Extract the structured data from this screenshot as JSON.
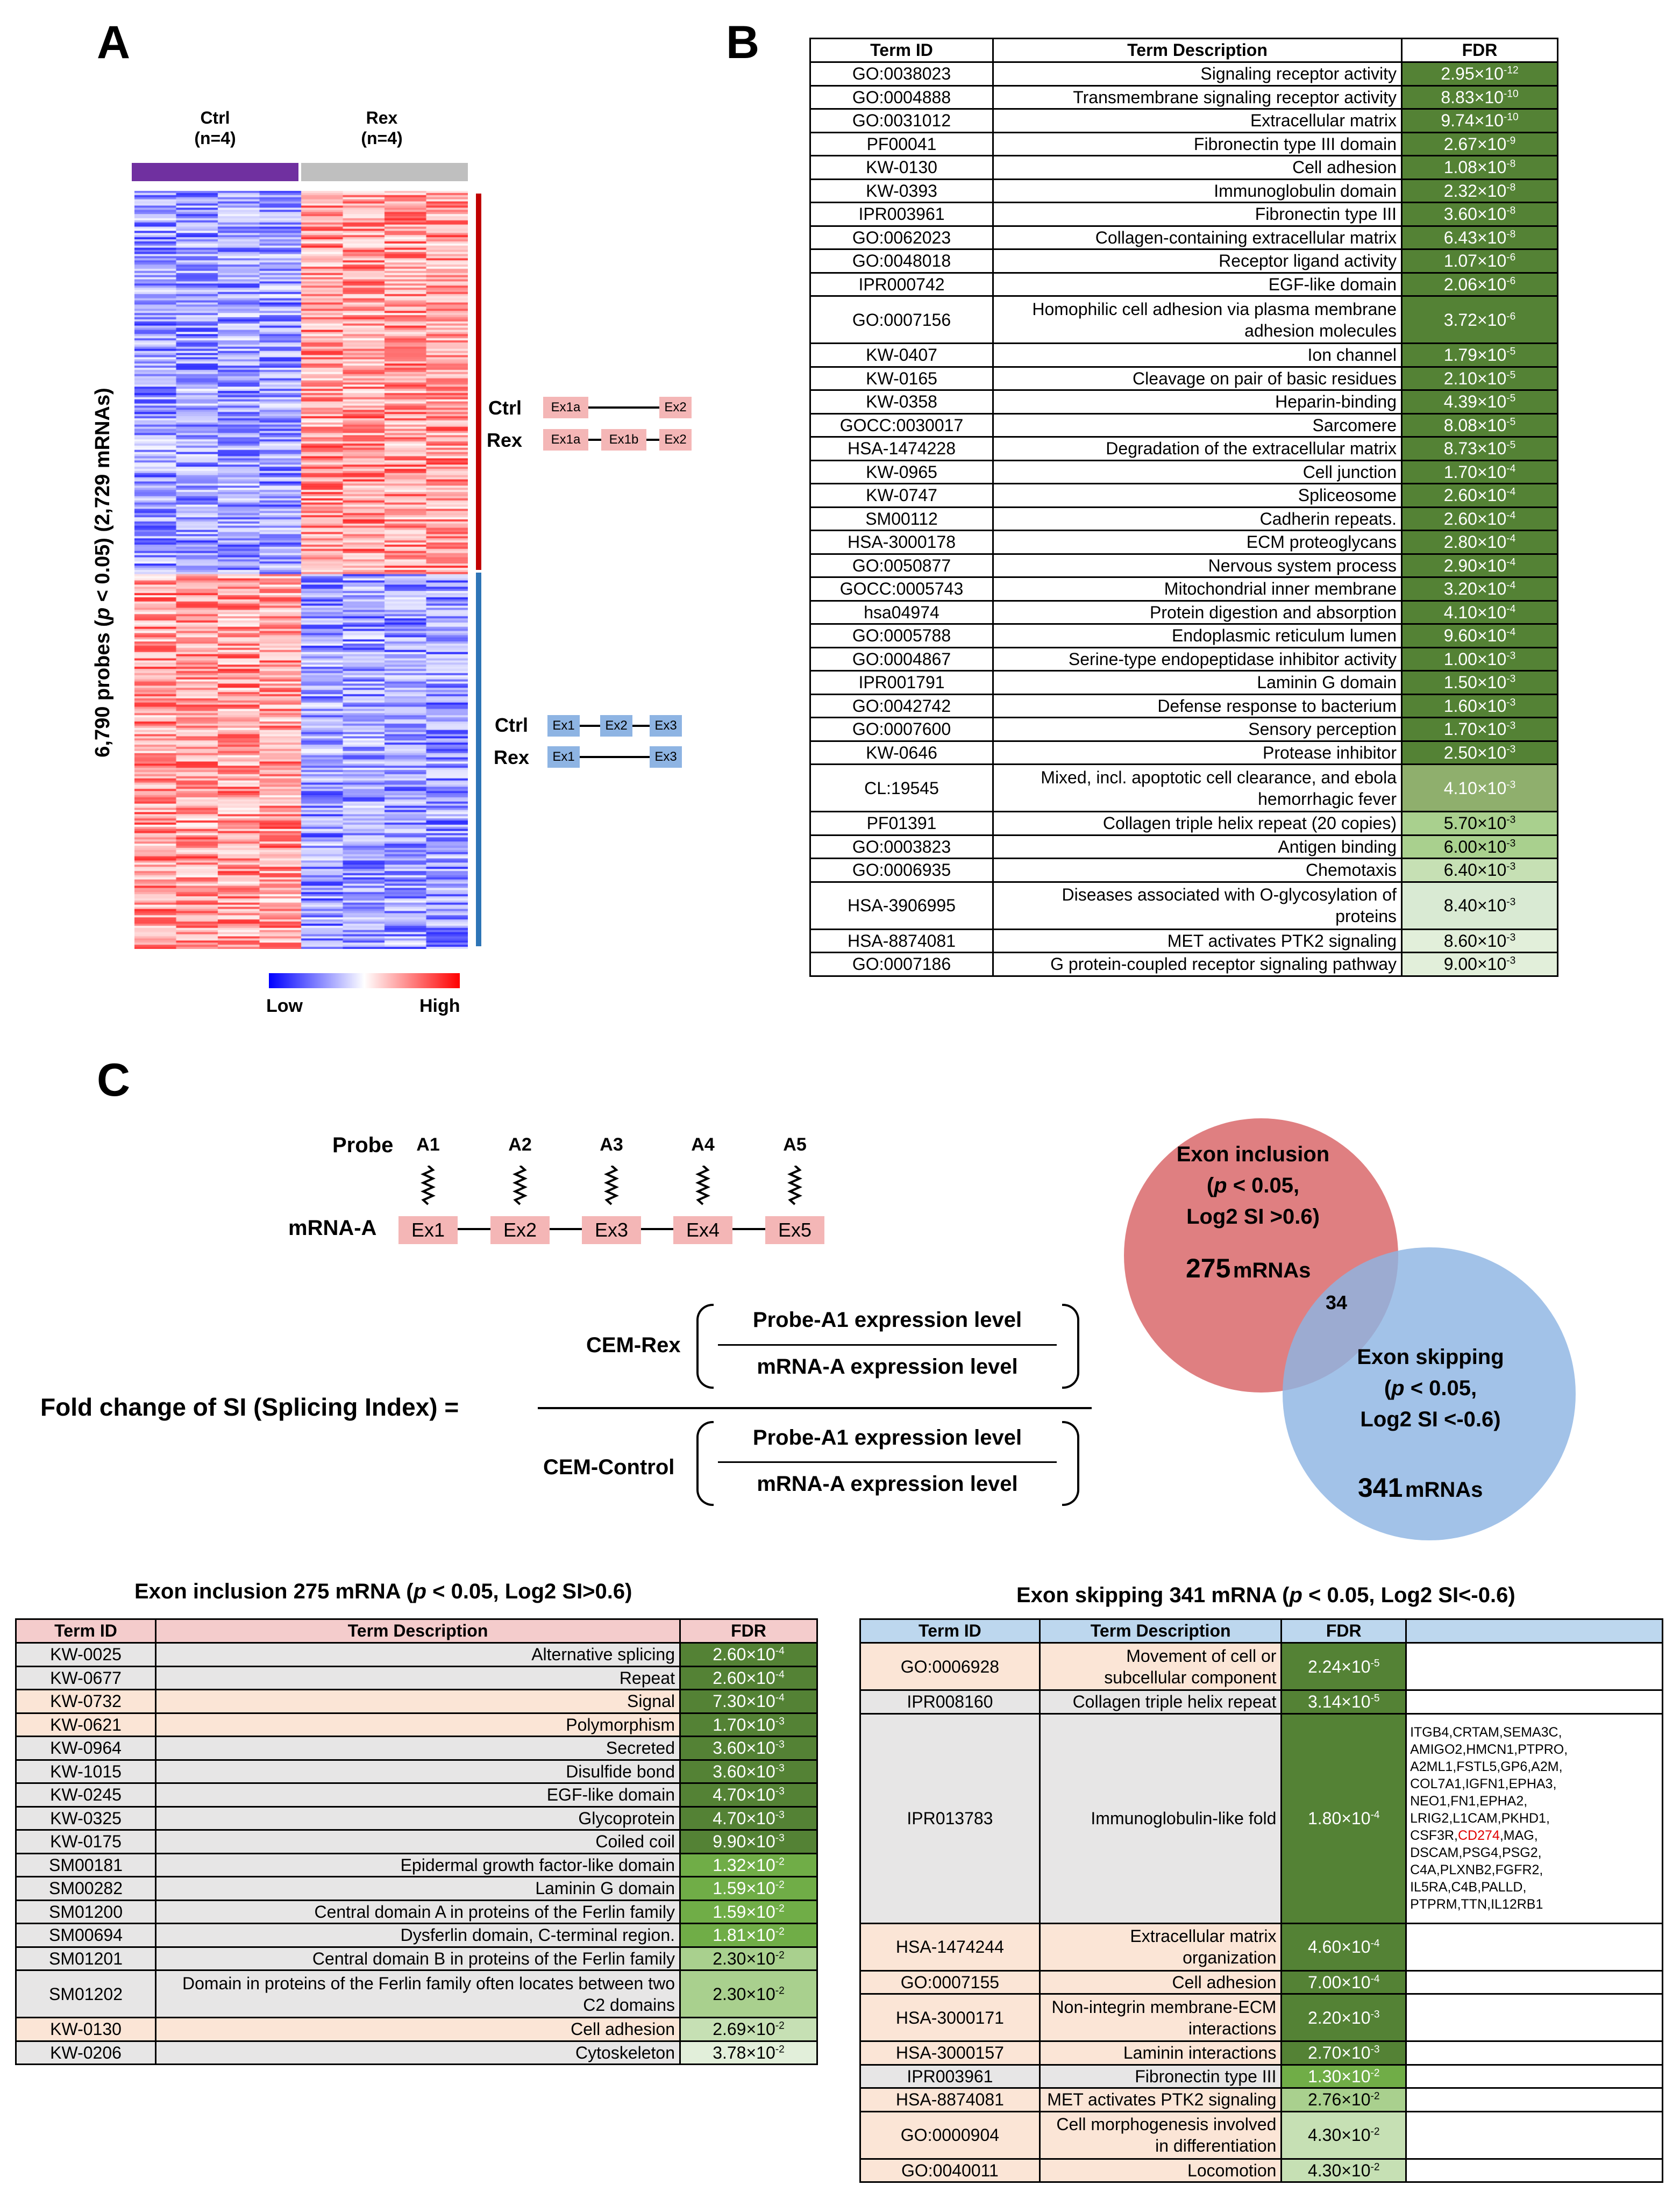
{
  "panel_a": {
    "letter": "A",
    "ctrl_label": "Ctrl",
    "ctrl_n": "(n=4)",
    "rex_label": "Rex",
    "rex_n": "(n=4)",
    "y_label_prefix": "6,790 probes (",
    "y_label_p": "p",
    "y_label_suffix": " < 0.05) (2,729 mRNAs)",
    "ctrl_color": "#7030a0",
    "rex_color": "#bfbfbf",
    "legend_low": "Low",
    "legend_high": "High",
    "inset_top": {
      "ctrl": "Ctrl",
      "rex": "Rex",
      "ex1a": "Ex1a",
      "ex2": "Ex2",
      "ex1b": "Ex1b"
    },
    "inset_bottom": {
      "ctrl": "Ctrl",
      "rex": "Rex",
      "ex1": "Ex1",
      "ex2": "Ex2",
      "ex3": "Ex3"
    }
  },
  "panel_b": {
    "letter": "B",
    "headers": [
      "Term ID",
      "Term Description",
      "FDR"
    ],
    "rows": [
      [
        "GO:0038023",
        "Signaling receptor activity",
        "2.95×10",
        "-12",
        "#548235",
        "#fff"
      ],
      [
        "GO:0004888",
        "Transmembrane signaling receptor activity",
        "8.83×10",
        "-10",
        "#548235",
        "#fff"
      ],
      [
        "GO:0031012",
        "Extracellular matrix",
        "9.74×10",
        "-10",
        "#548235",
        "#fff"
      ],
      [
        "PF00041",
        "Fibronectin type III domain",
        "2.67×10",
        "-9",
        "#548235",
        "#fff"
      ],
      [
        "KW-0130",
        "Cell adhesion",
        "1.08×10",
        "-8",
        "#548235",
        "#fff"
      ],
      [
        "KW-0393",
        "Immunoglobulin domain",
        "2.32×10",
        "-8",
        "#548235",
        "#fff"
      ],
      [
        "IPR003961",
        "Fibronectin type III",
        "3.60×10",
        "-8",
        "#548235",
        "#fff"
      ],
      [
        "GO:0062023",
        "Collagen-containing extracellular matrix",
        "6.43×10",
        "-8",
        "#548235",
        "#fff"
      ],
      [
        "GO:0048018",
        "Receptor ligand activity",
        "1.07×10",
        "-6",
        "#548235",
        "#fff"
      ],
      [
        "IPR000742",
        "EGF-like domain",
        "2.06×10",
        "-6",
        "#548235",
        "#fff"
      ],
      [
        "GO:0007156",
        "Homophilic cell adhesion via plasma membrane adhesion molecules",
        "3.72×10",
        "-6",
        "#548235",
        "#fff"
      ],
      [
        "KW-0407",
        "Ion channel",
        "1.79×10",
        "-5",
        "#548235",
        "#fff"
      ],
      [
        "KW-0165",
        "Cleavage on pair of basic residues",
        "2.10×10",
        "-5",
        "#548235",
        "#fff"
      ],
      [
        "KW-0358",
        "Heparin-binding",
        "4.39×10",
        "-5",
        "#548235",
        "#fff"
      ],
      [
        "GOCC:0030017",
        "Sarcomere",
        "8.08×10",
        "-5",
        "#548235",
        "#fff"
      ],
      [
        "HSA-1474228",
        "Degradation of the extracellular matrix",
        "8.73×10",
        "-5",
        "#548235",
        "#fff"
      ],
      [
        "KW-0965",
        "Cell junction",
        "1.70×10",
        "-4",
        "#548235",
        "#fff"
      ],
      [
        "KW-0747",
        "Spliceosome",
        "2.60×10",
        "-4",
        "#548235",
        "#fff"
      ],
      [
        "SM00112",
        "Cadherin repeats.",
        "2.60×10",
        "-4",
        "#548235",
        "#fff"
      ],
      [
        "HSA-3000178",
        "ECM proteoglycans",
        "2.80×10",
        "-4",
        "#548235",
        "#fff"
      ],
      [
        "GO:0050877",
        "Nervous system process",
        "2.90×10",
        "-4",
        "#548235",
        "#fff"
      ],
      [
        "GOCC:0005743",
        "Mitochondrial inner membrane",
        "3.20×10",
        "-4",
        "#548235",
        "#fff"
      ],
      [
        "hsa04974",
        "Protein digestion and absorption",
        "4.10×10",
        "-4",
        "#548235",
        "#fff"
      ],
      [
        "GO:0005788",
        "Endoplasmic reticulum lumen",
        "9.60×10",
        "-4",
        "#548235",
        "#fff"
      ],
      [
        "GO:0004867",
        "Serine-type endopeptidase inhibitor activity",
        "1.00×10",
        "-3",
        "#548235",
        "#fff"
      ],
      [
        "IPR001791",
        "Laminin G domain",
        "1.50×10",
        "-3",
        "#548235",
        "#fff"
      ],
      [
        "GO:0042742",
        "Defense response to bacterium",
        "1.60×10",
        "-3",
        "#548235",
        "#fff"
      ],
      [
        "GO:0007600",
        "Sensory perception",
        "1.70×10",
        "-3",
        "#548235",
        "#fff"
      ],
      [
        "KW-0646",
        "Protease inhibitor",
        "2.50×10",
        "-3",
        "#548235",
        "#fff"
      ],
      [
        "CL:19545",
        "Mixed, incl. apoptotic cell clearance, and ebola hemorrhagic fever",
        "4.10×10",
        "-3",
        "#8faf6d",
        "#fff"
      ],
      [
        "PF01391",
        "Collagen triple helix repeat (20 copies)",
        "5.70×10",
        "-3",
        "#a9d08e",
        "#000"
      ],
      [
        "GO:0003823",
        "Antigen binding",
        "6.00×10",
        "-3",
        "#a9d08e",
        "#000"
      ],
      [
        "GO:0006935",
        "Chemotaxis",
        "6.40×10",
        "-3",
        "#c6e0b4",
        "#000"
      ],
      [
        "HSA-3906995",
        "Diseases associated with O-glycosylation of proteins",
        "8.40×10",
        "-3",
        "#d9ead3",
        "#000"
      ],
      [
        "HSA-8874081",
        "MET activates PTK2 signaling",
        "8.60×10",
        "-3",
        "#e2efda",
        "#000"
      ],
      [
        "GO:0007186",
        "G protein-coupled receptor signaling pathway",
        "9.00×10",
        "-3",
        "#e2efda",
        "#000"
      ]
    ]
  },
  "panel_c": {
    "letter": "C",
    "probe_label": "Probe",
    "probes": [
      "A1",
      "A2",
      "A3",
      "A4",
      "A5"
    ],
    "mrna_label": "mRNA-A",
    "exons": [
      "Ex1",
      "Ex2",
      "Ex3",
      "Ex4",
      "Ex5"
    ],
    "formula_left": "Fold change of SI (Splicing Index) =",
    "cem_rex": "CEM-Rex",
    "cem_control": "CEM-Control",
    "num": "Probe-A1 expression level",
    "den": "mRNA-A expression level",
    "venn": {
      "incl_title": "Exon inclusion",
      "incl_p1": "(",
      "incl_p": "p",
      "incl_p2": " < 0.05,",
      "incl_si": "Log2 SI >0.6)",
      "incl_count": "275",
      "incl_unit": "mRNAs",
      "overlap": "34",
      "skip_title": "Exon skipping",
      "skip_p1": "(",
      "skip_p": "p",
      "skip_p2": " < 0.05,",
      "skip_si": "Log2  SI <-0.6)",
      "skip_count": "341",
      "skip_unit": "mRNAs",
      "incl_color": "#d9686b",
      "skip_color": "#8eb4e3"
    }
  },
  "incl_table": {
    "title_a": "Exon inclusion  275 mRNA (",
    "title_p": "p",
    "title_b": " < 0.05, Log2 SI>0.6)",
    "headers": [
      "Term ID",
      "Term Description",
      "FDR"
    ],
    "rows": [
      [
        "KW-0025",
        "Alternative splicing",
        "2.60×10",
        "-4",
        "#e7e6e6",
        "#548235",
        "#fff"
      ],
      [
        "KW-0677",
        "Repeat",
        "2.60×10",
        "-4",
        "#e7e6e6",
        "#548235",
        "#fff"
      ],
      [
        "KW-0732",
        "Signal",
        "7.30×10",
        "-4",
        "#fbe5d6",
        "#548235",
        "#fff"
      ],
      [
        "KW-0621",
        "Polymorphism",
        "1.70×10",
        "-3",
        "#fbe5d6",
        "#548235",
        "#fff"
      ],
      [
        "KW-0964",
        "Secreted",
        "3.60×10",
        "-3",
        "#e7e6e6",
        "#548235",
        "#fff"
      ],
      [
        "KW-1015",
        "Disulfide bond",
        "3.60×10",
        "-3",
        "#e7e6e6",
        "#548235",
        "#fff"
      ],
      [
        "KW-0245",
        "EGF-like domain",
        "4.70×10",
        "-3",
        "#e7e6e6",
        "#548235",
        "#fff"
      ],
      [
        "KW-0325",
        "Glycoprotein",
        "4.70×10",
        "-3",
        "#e7e6e6",
        "#548235",
        "#fff"
      ],
      [
        "KW-0175",
        "Coiled coil",
        "9.90×10",
        "-3",
        "#e7e6e6",
        "#548235",
        "#fff"
      ],
      [
        "SM00181",
        "Epidermal growth factor-like domain",
        "1.32×10",
        "-2",
        "#e7e6e6",
        "#70ad47",
        "#fff"
      ],
      [
        "SM00282",
        "Laminin G domain",
        "1.59×10",
        "-2",
        "#e7e6e6",
        "#70ad47",
        "#fff"
      ],
      [
        "SM01200",
        "Central domain A in proteins of the Ferlin family",
        "1.59×10",
        "-2",
        "#e7e6e6",
        "#70ad47",
        "#fff"
      ],
      [
        "SM00694",
        "Dysferlin domain, C-terminal region.",
        "1.81×10",
        "-2",
        "#e7e6e6",
        "#70ad47",
        "#fff"
      ],
      [
        "SM01201",
        "Central domain B in proteins of the Ferlin family",
        "2.30×10",
        "-2",
        "#e7e6e6",
        "#a9d08e",
        "#000"
      ],
      [
        "SM01202",
        "Domain in proteins of the Ferlin family often locates between two C2 domains",
        "2.30×10",
        "-2",
        "#e7e6e6",
        "#a9d08e",
        "#000"
      ],
      [
        "KW-0130",
        "Cell adhesion",
        "2.69×10",
        "-2",
        "#fbe5d6",
        "#c6e0b4",
        "#000"
      ],
      [
        "KW-0206",
        "Cytoskeleton",
        "3.78×10",
        "-2",
        "#e7e6e6",
        "#e2efda",
        "#000"
      ]
    ]
  },
  "skip_table": {
    "title_a": "Exon skipping  341 mRNA (",
    "title_p": "p",
    "title_b": " < 0.05, Log2 SI<-0.6)",
    "headers": [
      "Term ID",
      "Term Description",
      "FDR"
    ],
    "rows": [
      [
        "GO:0006928",
        "Movement of cell or subcellular component",
        "2.24×10",
        "-5",
        "#fbe5d6",
        "#548235",
        "#fff"
      ],
      [
        "IPR008160",
        "Collagen triple helix repeat",
        "3.14×10",
        "-5",
        "#e7e6e6",
        "#548235",
        "#fff"
      ],
      [
        "IPR013783",
        "Immunoglobulin-like fold",
        "1.80×10",
        "-4",
        "#e7e6e6",
        "#548235",
        "#fff"
      ],
      [
        "HSA-1474244",
        "Extracellular matrix organization",
        "4.60×10",
        "-4",
        "#fbe5d6",
        "#548235",
        "#fff"
      ],
      [
        "GO:0007155",
        "Cell adhesion",
        "7.00×10",
        "-4",
        "#fbe5d6",
        "#548235",
        "#fff"
      ],
      [
        "HSA-3000171",
        "Non-integrin membrane-ECM interactions",
        "2.20×10",
        "-3",
        "#fbe5d6",
        "#548235",
        "#fff"
      ],
      [
        "HSA-3000157",
        "Laminin interactions",
        "2.70×10",
        "-3",
        "#fbe5d6",
        "#548235",
        "#fff"
      ],
      [
        "IPR003961",
        "Fibronectin type III",
        "1.30×10",
        "-2",
        "#e7e6e6",
        "#70ad47",
        "#fff"
      ],
      [
        "HSA-8874081",
        "MET activates PTK2 signaling",
        "2.76×10",
        "-2",
        "#fbe5d6",
        "#a9d08e",
        "#000"
      ],
      [
        "GO:0000904",
        "Cell morphogenesis involved in differentiation",
        "4.30×10",
        "-2",
        "#fbe5d6",
        "#c6e0b4",
        "#000"
      ],
      [
        "GO:0040011",
        "Locomotion",
        "4.30×10",
        "-2",
        "#fbe5d6",
        "#c6e0b4",
        "#000"
      ]
    ],
    "gene_list_a": "ITGB4,CRTAM,SEMA3C, AMIGO2,HMCN1,PTPRO, A2ML1,FSTL5,GP6,A2M, COL7A1,IGFN1,EPHA3, NEO1,FN1,EPHA2, LRIG2,L1CAM,PKHD1, CSF3R,",
    "gene_list_red": "CD274",
    "gene_list_b": ",MAG, DSCAM,PSG4,PSG2, C4A,PLXNB2,FGFR2, IL5RA,C4B,PALLD, PTPRM,TTN,IL12RB1"
  }
}
